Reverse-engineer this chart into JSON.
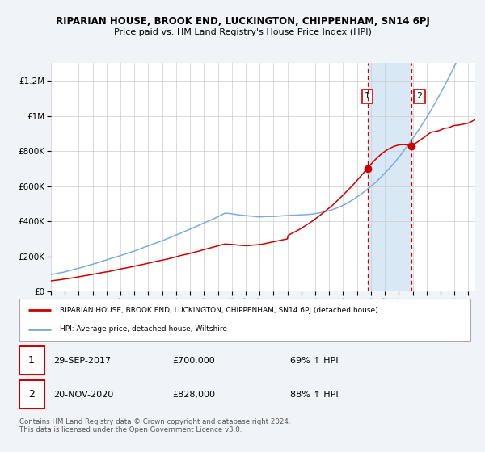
{
  "title": "RIPARIAN HOUSE, BROOK END, LUCKINGTON, CHIPPENHAM, SN14 6PJ",
  "subtitle": "Price paid vs. HM Land Registry's House Price Index (HPI)",
  "legend_red": "RIPARIAN HOUSE, BROOK END, LUCKINGTON, CHIPPENHAM, SN14 6PJ (detached house)",
  "legend_blue": "HPI: Average price, detached house, Wiltshire",
  "annotation1_label": "1",
  "annotation1_date": "29-SEP-2017",
  "annotation1_price": "£700,000",
  "annotation1_hpi": "69% ↑ HPI",
  "annotation2_label": "2",
  "annotation2_date": "20-NOV-2020",
  "annotation2_price": "£828,000",
  "annotation2_hpi": "88% ↑ HPI",
  "sale1_year": 2017.75,
  "sale1_value": 700000,
  "sale2_year": 2020.89,
  "sale2_value": 828000,
  "xmin": 1995,
  "xmax": 2025.5,
  "ymin": 0,
  "ymax": 1300000,
  "yticks": [
    0,
    200000,
    400000,
    600000,
    800000,
    1000000,
    1200000
  ],
  "ytick_labels": [
    "£0",
    "£200K",
    "£400K",
    "£600K",
    "£800K",
    "£1M",
    "£1.2M"
  ],
  "background_color": "#f0f4f8",
  "plot_bg_color": "#ffffff",
  "highlight_bg_color": "#d8e8f5",
  "grid_color": "#cccccc",
  "red_line_color": "#cc0000",
  "blue_line_color": "#7aabdd",
  "vline_color": "#cc0000",
  "footer": "Contains HM Land Registry data © Crown copyright and database right 2024.\nThis data is licensed under the Open Government Licence v3.0."
}
